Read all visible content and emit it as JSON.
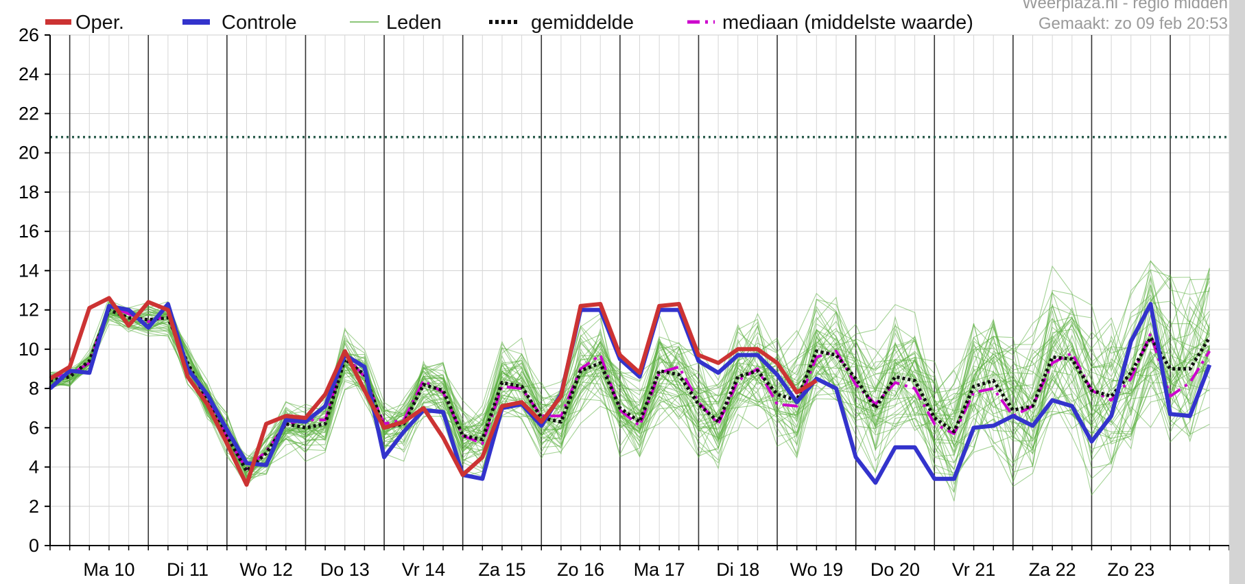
{
  "header": {
    "credit": "Weerplaza.nl - regio midden",
    "created": "Gemaakt: zo 09 feb 20:53"
  },
  "legend": [
    {
      "label": "Oper.",
      "color": "#cc3333",
      "style": "solid-thick"
    },
    {
      "label": "Controle",
      "color": "#3333cc",
      "style": "solid-thick"
    },
    {
      "label": "Leden",
      "color": "#66b34d",
      "style": "solid-thin"
    },
    {
      "label": "gemiddelde",
      "color": "#111111",
      "style": "dotted"
    },
    {
      "label": "mediaan (middelste waarde)",
      "color": "#cc00cc",
      "style": "dash-dot"
    }
  ],
  "chart_data": {
    "type": "line",
    "ylim": [
      0,
      26
    ],
    "yticks": [
      0,
      2,
      4,
      6,
      8,
      10,
      12,
      14,
      16,
      18,
      20,
      22,
      24,
      26
    ],
    "x_steps": 60,
    "day_labels": [
      "Ma 10",
      "Di 11",
      "Wo 12",
      "Do 13",
      "Vr 14",
      "Za 15",
      "Zo 16",
      "Ma 17",
      "Di 18",
      "Wo 19",
      "Do 20",
      "Vr 21",
      "Za 22",
      "Zo 23"
    ],
    "reference_line": {
      "y": 20.8,
      "color": "#2d5e4f",
      "style": "dotted"
    },
    "series": [
      {
        "name": "Oper.",
        "color": "#cc3333",
        "values": [
          8.5,
          9.1,
          12.1,
          12.6,
          11.2,
          12.4,
          12.0,
          8.6,
          7.2,
          5.2,
          3.1,
          6.2,
          6.6,
          6.5,
          7.7,
          9.9,
          7.9,
          6.0,
          6.3,
          7.0,
          5.5,
          3.6,
          4.5,
          7.1,
          7.3,
          6.3,
          7.6,
          12.2,
          12.3,
          9.7,
          8.8,
          12.2,
          12.3,
          9.7,
          9.3,
          10.0,
          10.0,
          9.3,
          7.8,
          8.4
        ]
      },
      {
        "name": "Controle",
        "color": "#3333cc",
        "values": [
          8.0,
          8.9,
          8.8,
          12.2,
          12.0,
          11.1,
          12.3,
          9.0,
          7.7,
          5.9,
          4.2,
          4.1,
          6.4,
          6.3,
          7.1,
          9.7,
          9.1,
          4.5,
          5.8,
          6.9,
          6.8,
          3.6,
          3.4,
          7.0,
          7.2,
          6.1,
          7.7,
          12.0,
          12.0,
          9.5,
          8.6,
          12.0,
          12.0,
          9.4,
          8.8,
          9.7,
          9.7,
          8.7,
          7.3,
          8.5,
          8.0,
          4.5,
          3.2,
          5.0,
          5.0,
          3.4,
          3.4,
          6.0,
          6.1,
          6.6,
          6.1,
          7.4,
          7.1,
          5.3,
          6.6,
          10.4,
          12.3,
          6.7,
          6.6,
          9.2
        ]
      },
      {
        "name": "gemiddelde",
        "color": "#111111",
        "values": [
          8.4,
          8.6,
          9.4,
          12.0,
          11.6,
          11.5,
          11.6,
          9.3,
          7.4,
          5.6,
          3.8,
          4.7,
          6.2,
          6.0,
          6.2,
          9.5,
          8.7,
          6.0,
          6.2,
          8.2,
          7.9,
          5.6,
          5.4,
          8.3,
          8.1,
          6.5,
          6.3,
          8.9,
          9.3,
          7.0,
          6.3,
          8.9,
          8.7,
          7.2,
          6.3,
          8.6,
          8.9,
          7.7,
          7.4,
          9.9,
          9.7,
          8.5,
          7.0,
          8.6,
          8.4,
          6.5,
          5.8,
          8.1,
          8.4,
          6.9,
          7.1,
          9.6,
          9.5,
          7.9,
          7.6,
          8.8,
          10.6,
          9.0,
          9.0,
          10.6
        ]
      },
      {
        "name": "mediaan (middelste waarde)",
        "color": "#cc00cc",
        "values": [
          8.6,
          8.7,
          9.3,
          12.2,
          11.8,
          11.4,
          11.7,
          9.2,
          7.4,
          5.5,
          3.9,
          4.8,
          6.2,
          6.4,
          6.4,
          9.7,
          8.6,
          6.2,
          6.4,
          8.4,
          7.8,
          5.6,
          5.2,
          8.1,
          8.0,
          6.6,
          6.6,
          9.0,
          9.7,
          6.9,
          6.1,
          8.8,
          9.1,
          7.3,
          6.2,
          8.4,
          9.0,
          7.2,
          7.1,
          9.6,
          9.9,
          8.2,
          7.2,
          8.3,
          8.0,
          6.2,
          5.7,
          7.8,
          8.0,
          6.6,
          7.1,
          9.3,
          9.8,
          7.9,
          7.4,
          8.5,
          10.8,
          7.6,
          8.3,
          9.9
        ]
      }
    ]
  }
}
